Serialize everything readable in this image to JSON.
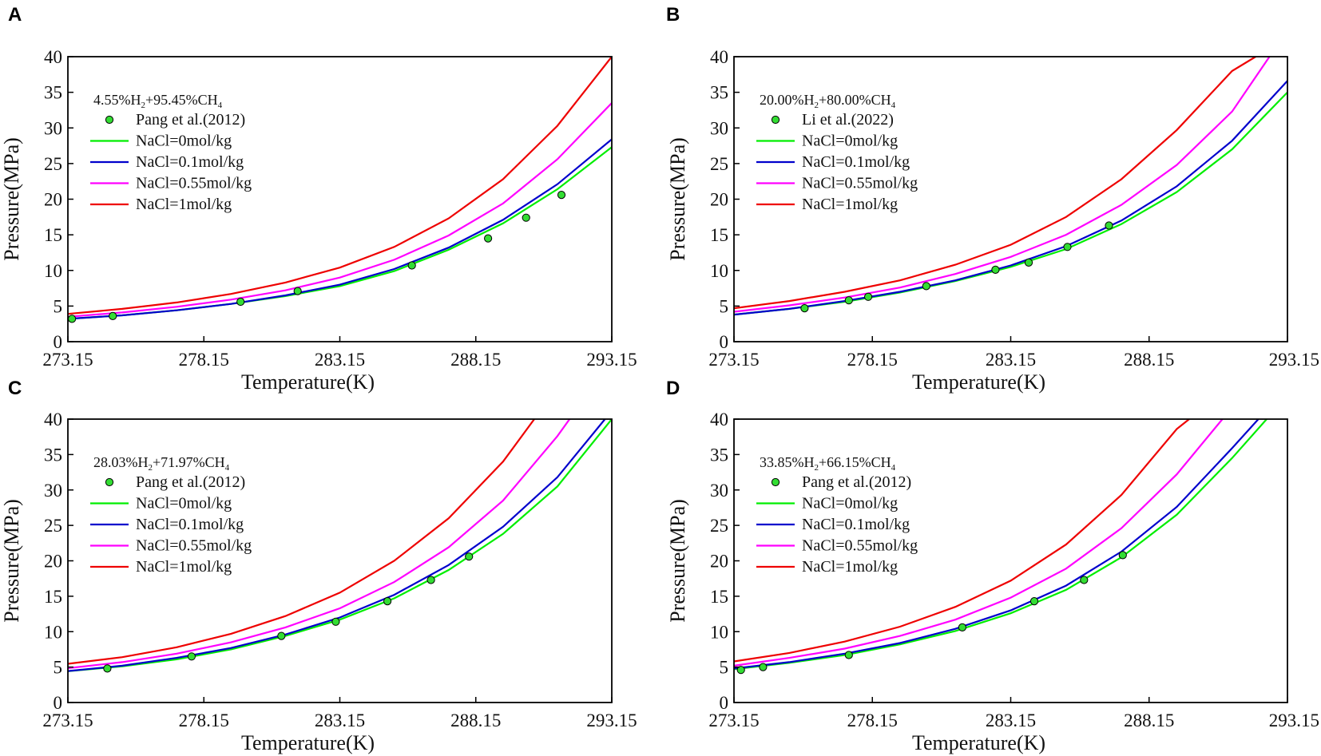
{
  "figure": {
    "series_colors": {
      "NaCl=0mol/kg": "#00ee00",
      "NaCl=0.1mol/kg": "#0000cc",
      "NaCl=0.55mol/kg": "#ff00ff",
      "NaCl=1mol/kg": "#ee0000",
      "points": "#33dd33"
    }
  },
  "chart_data": [
    {
      "panel": "A",
      "type": "line",
      "title": "",
      "legend_title": {
        "parts": [
          "4.55%H",
          "2",
          "+95.45%CH",
          "4"
        ]
      },
      "xlabel": "Temperature(K)",
      "ylabel": "Pressure(MPa)",
      "xlim": [
        273.15,
        293.15
      ],
      "ylim": [
        0,
        40
      ],
      "xticks": [
        "273.15",
        "278.15",
        "283.15",
        "288.15",
        "293.15"
      ],
      "yticks": [
        "0",
        "5",
        "10",
        "15",
        "20",
        "25",
        "30",
        "35",
        "40"
      ],
      "legend_position": "top-left",
      "points": {
        "name": "Pang et al.(2012)",
        "x": [
          273.3,
          274.8,
          279.5,
          281.6,
          285.8,
          288.6,
          290.0,
          291.3
        ],
        "y": [
          3.2,
          3.6,
          5.6,
          7.1,
          10.7,
          14.5,
          17.4,
          20.6
        ]
      },
      "series": [
        {
          "name": "NaCl=0mol/kg",
          "x": [
            273.15,
            275.15,
            277.15,
            279.15,
            281.15,
            283.15,
            285.15,
            287.15,
            289.15,
            291.15,
            293.15
          ],
          "values": [
            3.2,
            3.7,
            4.4,
            5.3,
            6.4,
            7.8,
            9.9,
            12.9,
            16.6,
            21.4,
            27.3
          ]
        },
        {
          "name": "NaCl=0.1mol/kg",
          "x": [
            273.15,
            275.15,
            277.15,
            279.15,
            281.15,
            283.15,
            285.15,
            287.15,
            289.15,
            291.15,
            293.15
          ],
          "values": [
            3.2,
            3.7,
            4.4,
            5.3,
            6.5,
            8.0,
            10.2,
            13.2,
            17.1,
            22.1,
            28.4
          ]
        },
        {
          "name": "NaCl=0.55mol/kg",
          "x": [
            273.15,
            275.15,
            277.15,
            279.15,
            281.15,
            283.15,
            285.15,
            287.15,
            289.15,
            291.15,
            293.15
          ],
          "values": [
            3.5,
            4.1,
            4.9,
            5.9,
            7.2,
            9.0,
            11.5,
            14.9,
            19.4,
            25.6,
            33.5
          ]
        },
        {
          "name": "NaCl=1mol/kg",
          "x": [
            273.15,
            275.15,
            277.15,
            279.15,
            281.15,
            283.15,
            285.15,
            287.15,
            289.15,
            291.15,
            293.15
          ],
          "values": [
            3.9,
            4.6,
            5.5,
            6.7,
            8.3,
            10.4,
            13.3,
            17.3,
            22.8,
            30.3,
            40.0
          ]
        }
      ]
    },
    {
      "panel": "B",
      "type": "line",
      "title": "",
      "legend_title": {
        "parts": [
          "20.00%H",
          "2",
          "+80.00%CH",
          "4"
        ]
      },
      "xlabel": "Temperature(K)",
      "ylabel": "Pressure(MPa)",
      "xlim": [
        273.15,
        293.15
      ],
      "ylim": [
        0,
        40
      ],
      "xticks": [
        "273.15",
        "278.15",
        "283.15",
        "288.15",
        "293.15"
      ],
      "yticks": [
        "0",
        "5",
        "10",
        "15",
        "20",
        "25",
        "30",
        "35",
        "40"
      ],
      "legend_position": "top-left",
      "points": {
        "name": "Li et al.(2022)",
        "x": [
          275.7,
          277.3,
          278.0,
          280.1,
          282.6,
          283.8,
          285.2,
          286.7
        ],
        "y": [
          4.7,
          5.8,
          6.3,
          7.8,
          10.1,
          11.1,
          13.3,
          16.3
        ]
      },
      "series": [
        {
          "name": "NaCl=0mol/kg",
          "x": [
            273.15,
            275.15,
            277.15,
            279.15,
            281.15,
            283.15,
            285.15,
            287.15,
            289.15,
            291.15,
            293.15
          ],
          "values": [
            3.8,
            4.6,
            5.6,
            6.9,
            8.5,
            10.5,
            13.0,
            16.5,
            21.0,
            27.0,
            35.0
          ]
        },
        {
          "name": "NaCl=0.1mol/kg",
          "x": [
            273.15,
            275.15,
            277.15,
            279.15,
            281.15,
            283.15,
            285.15,
            287.15,
            289.15,
            291.15,
            293.15
          ],
          "values": [
            3.8,
            4.6,
            5.7,
            7.0,
            8.6,
            10.7,
            13.4,
            17.0,
            21.8,
            28.2,
            36.6
          ]
        },
        {
          "name": "NaCl=0.55mol/kg",
          "x": [
            273.15,
            275.15,
            277.15,
            279.15,
            281.15,
            283.15,
            285.15,
            287.15,
            289.15,
            291.15,
            292.5
          ],
          "values": [
            4.2,
            5.1,
            6.2,
            7.6,
            9.5,
            11.9,
            15.0,
            19.2,
            24.8,
            32.3,
            40.0
          ]
        },
        {
          "name": "NaCl=1mol/kg",
          "x": [
            273.15,
            275.15,
            277.15,
            279.15,
            281.15,
            283.15,
            285.15,
            287.15,
            289.15,
            291.15,
            292.0
          ],
          "values": [
            4.7,
            5.7,
            7.0,
            8.6,
            10.8,
            13.6,
            17.5,
            22.8,
            29.7,
            38.0,
            40.0
          ]
        }
      ]
    },
    {
      "panel": "C",
      "type": "line",
      "title": "",
      "legend_title": {
        "parts": [
          "28.03%H",
          "2",
          "+71.97%CH",
          "4"
        ]
      },
      "xlabel": "Temperature(K)",
      "ylabel": "Pressure(MPa)",
      "xlim": [
        273.15,
        293.15
      ],
      "ylim": [
        0,
        40
      ],
      "xticks": [
        "273.15",
        "278.15",
        "283.15",
        "288.15",
        "293.15"
      ],
      "yticks": [
        "0",
        "5",
        "10",
        "15",
        "20",
        "25",
        "30",
        "35",
        "40"
      ],
      "legend_position": "top-left",
      "points": {
        "name": "Pang et al.(2012)",
        "x": [
          274.6,
          277.7,
          281.0,
          283.0,
          284.9,
          286.5,
          287.9
        ],
        "y": [
          4.8,
          6.5,
          9.4,
          11.4,
          14.3,
          17.3,
          20.6
        ]
      },
      "series": [
        {
          "name": "NaCl=0mol/kg",
          "x": [
            272.8,
            275.15,
            277.15,
            279.15,
            281.15,
            283.15,
            285.15,
            287.15,
            289.15,
            291.15,
            293.15
          ],
          "values": [
            4.3,
            5.1,
            6.1,
            7.5,
            9.4,
            11.7,
            14.7,
            18.7,
            23.8,
            30.5,
            40.0
          ]
        },
        {
          "name": "NaCl=0.1mol/kg",
          "x": [
            272.8,
            275.15,
            277.15,
            279.15,
            281.15,
            283.15,
            285.15,
            287.15,
            289.15,
            291.15,
            292.9
          ],
          "values": [
            4.3,
            5.2,
            6.3,
            7.7,
            9.6,
            12.0,
            15.2,
            19.4,
            24.8,
            31.8,
            40.0
          ]
        },
        {
          "name": "NaCl=0.55mol/kg",
          "x": [
            272.8,
            275.15,
            277.15,
            279.15,
            281.15,
            283.15,
            285.15,
            287.15,
            289.15,
            291.15,
            291.6
          ],
          "values": [
            4.7,
            5.7,
            6.9,
            8.5,
            10.6,
            13.3,
            17.0,
            21.9,
            28.5,
            37.6,
            40.0
          ]
        },
        {
          "name": "NaCl=1mol/kg",
          "x": [
            272.8,
            275.15,
            277.15,
            279.15,
            281.15,
            283.15,
            285.15,
            287.15,
            289.15,
            290.3
          ],
          "values": [
            5.3,
            6.4,
            7.8,
            9.7,
            12.2,
            15.5,
            20.0,
            26.0,
            34.0,
            40.0
          ]
        }
      ]
    },
    {
      "panel": "D",
      "type": "line",
      "title": "",
      "legend_title": {
        "parts": [
          "33.85%H",
          "2",
          "+66.15%CH",
          "4"
        ]
      },
      "xlabel": "Temperature(K)",
      "ylabel": "Pressure(MPa)",
      "xlim": [
        273.15,
        293.15
      ],
      "ylim": [
        0,
        40
      ],
      "xticks": [
        "273.15",
        "278.15",
        "283.15",
        "288.15",
        "293.15"
      ],
      "yticks": [
        "0",
        "5",
        "10",
        "15",
        "20",
        "25",
        "30",
        "35",
        "40"
      ],
      "legend_position": "top-left",
      "points": {
        "name": "Pang et al.(2012)",
        "x": [
          273.4,
          274.2,
          277.3,
          281.4,
          284.0,
          285.8,
          287.2
        ],
        "y": [
          4.6,
          5.0,
          6.7,
          10.6,
          14.3,
          17.3,
          20.8
        ]
      },
      "series": [
        {
          "name": "NaCl=0mol/kg",
          "x": [
            273.15,
            275.15,
            277.15,
            279.15,
            281.15,
            283.15,
            285.15,
            287.15,
            289.15,
            291.15,
            292.4
          ],
          "values": [
            4.7,
            5.6,
            6.7,
            8.2,
            10.1,
            12.6,
            15.9,
            20.5,
            26.5,
            34.5,
            40.0
          ]
        },
        {
          "name": "NaCl=0.1mol/kg",
          "x": [
            273.15,
            275.15,
            277.15,
            279.15,
            281.15,
            283.15,
            285.15,
            287.15,
            289.15,
            291.15,
            292.1
          ],
          "values": [
            4.8,
            5.7,
            6.9,
            8.4,
            10.4,
            13.0,
            16.5,
            21.3,
            27.6,
            35.9,
            40.0
          ]
        },
        {
          "name": "NaCl=0.55mol/kg",
          "x": [
            273.15,
            275.15,
            277.15,
            279.15,
            281.15,
            283.15,
            285.15,
            287.15,
            289.15,
            290.8
          ],
          "values": [
            5.2,
            6.3,
            7.6,
            9.4,
            11.7,
            14.8,
            18.9,
            24.6,
            32.2,
            40.0
          ]
        },
        {
          "name": "NaCl=1mol/kg",
          "x": [
            273.15,
            275.15,
            277.15,
            279.15,
            281.15,
            283.15,
            285.15,
            287.15,
            289.15,
            289.6
          ],
          "values": [
            5.8,
            7.0,
            8.6,
            10.7,
            13.5,
            17.2,
            22.3,
            29.3,
            38.6,
            40.0
          ]
        }
      ]
    }
  ]
}
